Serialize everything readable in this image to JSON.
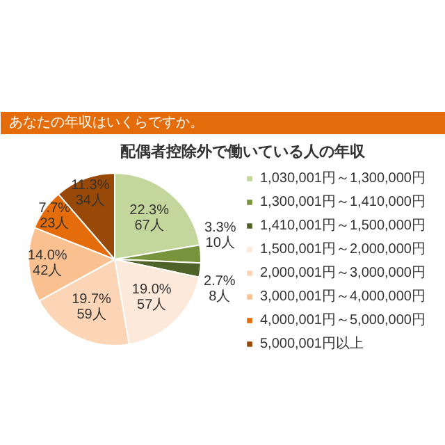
{
  "chart_data": {
    "type": "pie",
    "title": "配偶者控除外で働いている人の年収",
    "annotations": [
      "あなたの年収はいくらですか。"
    ],
    "categories": [
      "1,030,001円～1,300,000円",
      "1,300,001円～1,410,000円",
      "1,410,001円～1,500,000円",
      "1,500,001円～2,000,000円",
      "2,000,001円～3,000,000円",
      "3,000,001円～4,000,000円",
      "4,000,001円～5,000,000円",
      "5,000,001円以上"
    ],
    "values": [
      67,
      10,
      8,
      57,
      59,
      42,
      23,
      34
    ],
    "value_labels": [
      "22.3%\n67人",
      "3.3%\n10人",
      "2.7%\n8人",
      "19.0%\n57人",
      "19.7%\n59人",
      "14.0%\n42人",
      "7.7%\n23人",
      "11.3%\n34人"
    ],
    "colors": [
      "#c3d69b",
      "#77933c",
      "#4f6228",
      "#fde9d9",
      "#fbd5b5",
      "#fac090",
      "#e46c0a",
      "#984807"
    ],
    "legend": "right"
  }
}
